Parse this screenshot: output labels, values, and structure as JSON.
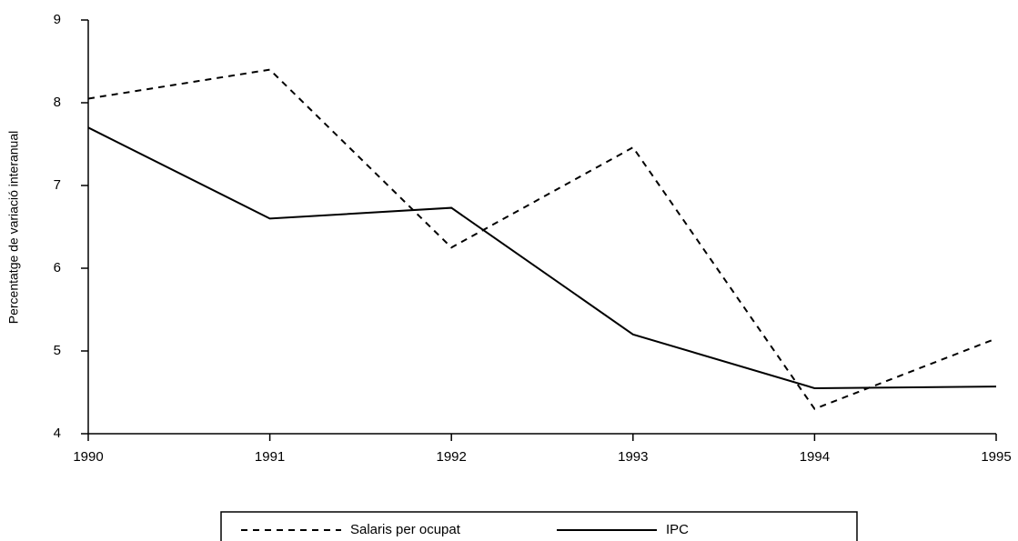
{
  "chart_data": {
    "type": "line",
    "y_label": "Percentatge de variació interanual",
    "x": [
      1990,
      1991,
      1992,
      1993,
      1994,
      1995
    ],
    "series": [
      {
        "name": "Salaris per ocupat",
        "color": "#000000",
        "dash": true,
        "values": [
          8.05,
          8.4,
          6.25,
          7.46,
          4.3,
          5.15
        ]
      },
      {
        "name": "IPC",
        "color": "#000000",
        "dash": false,
        "values": [
          7.7,
          6.6,
          6.73,
          5.2,
          4.55,
          4.57
        ]
      }
    ],
    "xlim": [
      1990,
      1995
    ],
    "xticks": [
      1990,
      1991,
      1992,
      1993,
      1994,
      1995
    ],
    "ylim": [
      4,
      9
    ],
    "yticks": [
      4,
      5,
      6,
      7,
      8,
      9
    ]
  }
}
